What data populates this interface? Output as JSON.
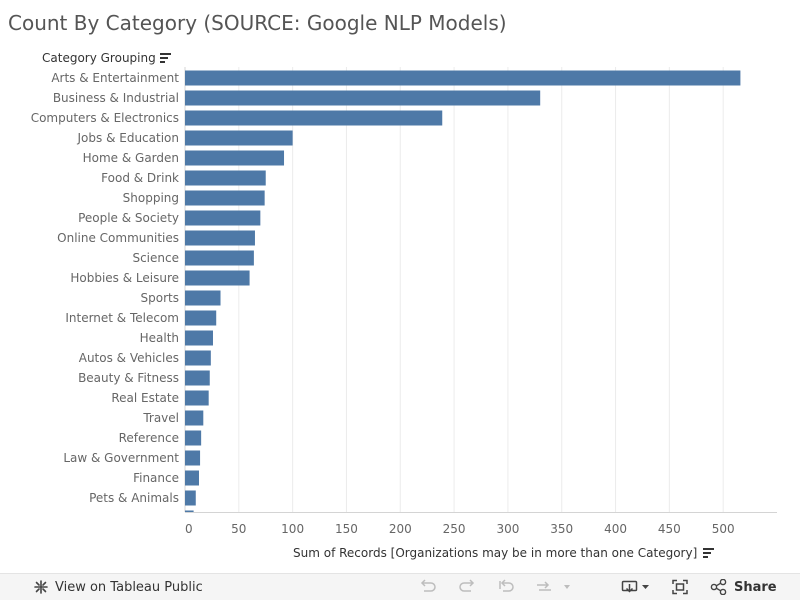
{
  "title": "Count By Category (SOURCE: Google NLP Models)",
  "row_header": "Category Grouping",
  "toolbar": {
    "view_label": "View on Tableau Public",
    "share_label": "Share"
  },
  "colors": {
    "bar": "#4e79a7",
    "grid": "#ececec",
    "toolbar_bg": "#f5f5f5",
    "disabled_icon": "#bdbdbd"
  },
  "icons": {
    "tableau": "tableau-logo-icon",
    "undo": "undo-icon",
    "redo": "redo-icon",
    "revert": "revert-icon",
    "refresh": "refresh-icon",
    "download": "download-icon",
    "fullscreen": "fullscreen-icon",
    "share": "share-icon"
  },
  "chart_data": {
    "type": "bar",
    "orientation": "horizontal",
    "title": "Count By Category (SOURCE: Google NLP Models)",
    "xlabel": "Sum of Records  [Organizations may be in more than one Category]",
    "ylabel": "Category Grouping",
    "xlim": [
      0,
      550
    ],
    "xticks": [
      0,
      50,
      100,
      150,
      200,
      250,
      300,
      350,
      400,
      450,
      500
    ],
    "grid": true,
    "categories": [
      "Arts & Entertainment",
      "Business & Industrial",
      "Computers & Electronics",
      "Jobs & Education",
      "Home & Garden",
      "Food & Drink",
      "Shopping",
      "People & Society",
      "Online Communities",
      "Science",
      "Hobbies & Leisure",
      "Sports",
      "Internet & Telecom",
      "Health",
      "Autos & Vehicles",
      "Beauty & Fitness",
      "Real Estate",
      "Travel",
      "Reference",
      "Law & Government",
      "Finance",
      "Pets & Animals",
      ""
    ],
    "values": [
      516,
      330,
      239,
      100,
      92,
      75,
      74,
      70,
      65,
      64,
      60,
      33,
      29,
      26,
      24,
      23,
      22,
      17,
      15,
      14,
      13,
      10,
      8
    ]
  }
}
